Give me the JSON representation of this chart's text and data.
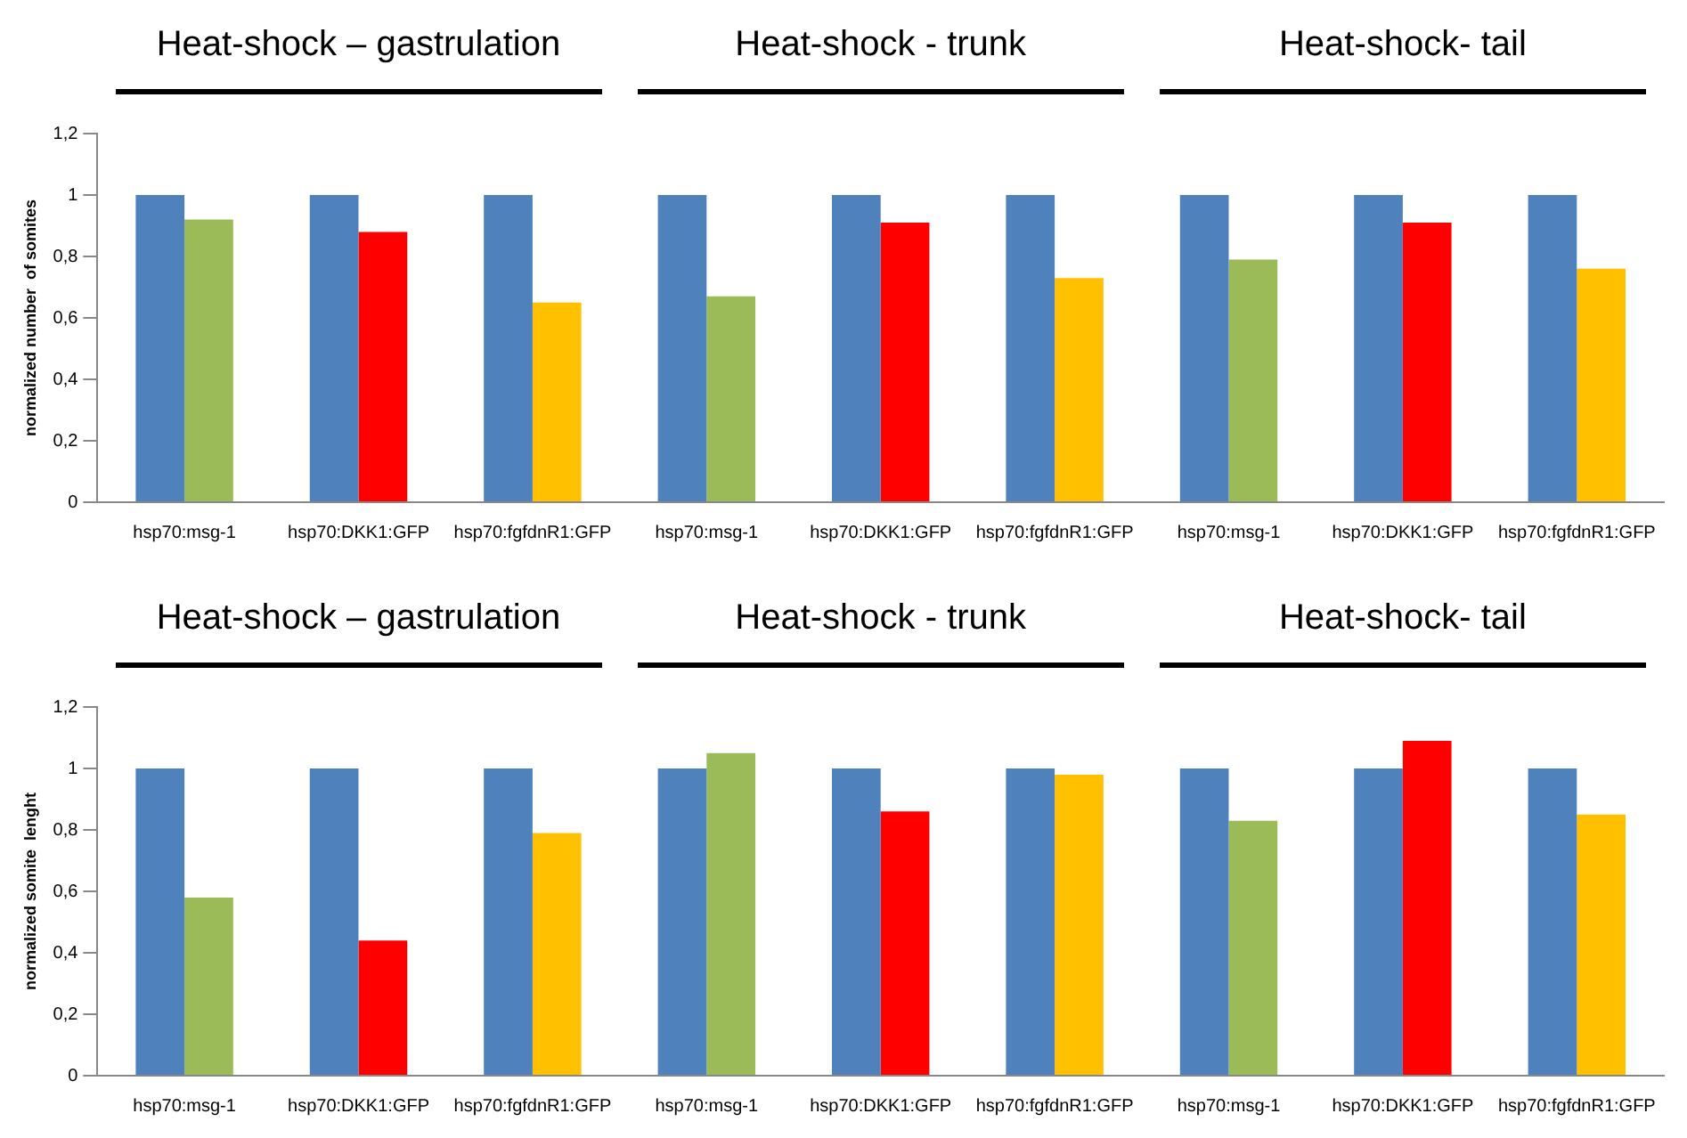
{
  "chart_data": [
    {
      "type": "bar",
      "ylabel": "normalized number  of somites",
      "annotations": [
        "Heat-shock – gastrulation",
        "Heat-shock - trunk",
        "Heat-shock- tail"
      ],
      "categories": [
        "hsp70:msg-1",
        "hsp70:DKK1:GFP",
        "hsp70:fgfdnR1:GFP",
        "hsp70:msg-1",
        "hsp70:DKK1:GFP",
        "hsp70:fgfdnR1:GFP",
        "hsp70:msg-1",
        "hsp70:DKK1:GFP",
        "hsp70:fgfdnR1:GFP"
      ],
      "series": [
        {
          "color": "#4f81bd",
          "values": [
            1,
            1,
            1,
            1,
            1,
            1,
            1,
            1,
            1
          ]
        },
        {
          "colors": [
            "#9bbb59",
            "#ff0000",
            "#ffc000",
            "#9bbb59",
            "#ff0000",
            "#ffc000",
            "#9bbb59",
            "#ff0000",
            "#ffc000"
          ],
          "values": [
            0.92,
            0.88,
            0.65,
            0.67,
            0.91,
            0.73,
            0.79,
            0.91,
            0.76
          ]
        }
      ],
      "ylim": [
        0,
        1.2
      ],
      "yticks": [
        {
          "value": 0,
          "label": "0"
        },
        {
          "value": 0.2,
          "label": "0,2"
        },
        {
          "value": 0.4,
          "label": "0,4"
        },
        {
          "value": 0.6,
          "label": "0,6"
        },
        {
          "value": 0.8,
          "label": "0,8"
        },
        {
          "value": 1,
          "label": "1"
        },
        {
          "value": 1.2,
          "label": "1,2"
        }
      ],
      "grid": false,
      "legend": false
    },
    {
      "type": "bar",
      "ylabel": "normalized somite  lenght",
      "annotations": [
        "Heat-shock – gastrulation",
        "Heat-shock - trunk",
        "Heat-shock- tail"
      ],
      "categories": [
        "hsp70:msg-1",
        "hsp70:DKK1:GFP",
        "hsp70:fgfdnR1:GFP",
        "hsp70:msg-1",
        "hsp70:DKK1:GFP",
        "hsp70:fgfdnR1:GFP",
        "hsp70:msg-1",
        "hsp70:DKK1:GFP",
        "hsp70:fgfdnR1:GFP"
      ],
      "series": [
        {
          "color": "#4f81bd",
          "values": [
            1,
            1,
            1,
            1,
            1,
            1,
            1,
            1,
            1
          ]
        },
        {
          "colors": [
            "#9bbb59",
            "#ff0000",
            "#ffc000",
            "#9bbb59",
            "#ff0000",
            "#ffc000",
            "#9bbb59",
            "#ff0000",
            "#ffc000"
          ],
          "values": [
            0.58,
            0.44,
            0.79,
            1.05,
            0.86,
            0.98,
            0.83,
            1.09,
            0.85
          ]
        }
      ],
      "ylim": [
        0,
        1.2
      ],
      "yticks": [
        {
          "value": 0,
          "label": "0"
        },
        {
          "value": 0.2,
          "label": "0,2"
        },
        {
          "value": 0.4,
          "label": "0,4"
        },
        {
          "value": 0.6,
          "label": "0,6"
        },
        {
          "value": 0.8,
          "label": "0,8"
        },
        {
          "value": 1,
          "label": "1"
        },
        {
          "value": 1.2,
          "label": "1,2"
        }
      ],
      "grid": false,
      "legend": false
    }
  ]
}
